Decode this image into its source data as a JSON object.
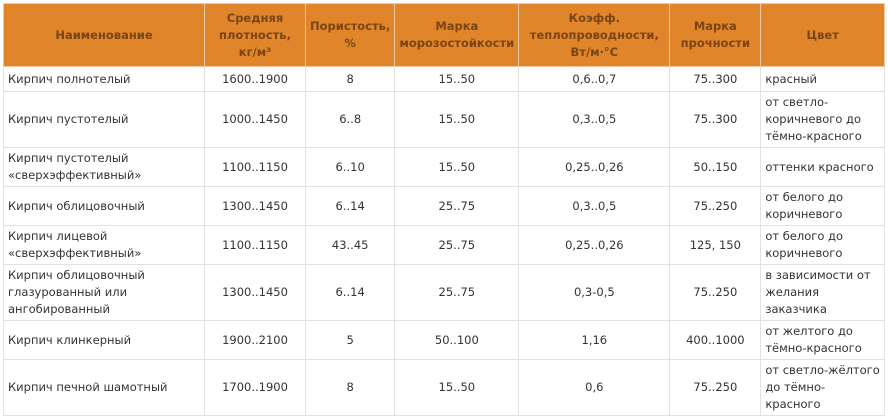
{
  "headers": [
    "Наименование",
    "Средняя плотность, кг/м³",
    "Пористость, %",
    "Марка морозостойкости",
    "Коэфф. теплопроводности, Вт/м·°С",
    "Марка прочности",
    "Цвет"
  ],
  "header_color": "#e0852a",
  "rows": [
    [
      "Кирпич полнотелый",
      "1600..1900",
      "8",
      "15..50",
      "0,6..0,7",
      "75..300",
      "красный"
    ],
    [
      "Кирпич пустотелый",
      "1000..1450",
      "6..8",
      "15..50",
      "0,3..0,5",
      "75..300",
      "от светло-коричневого до тёмно-красного"
    ],
    [
      "Кирпич пустотелый «сверхэффективный»",
      "1100..1150",
      "6..10",
      "15..50",
      "0,25..0,26",
      "50..150",
      "оттенки красного"
    ],
    [
      "Кирпич облицовочный",
      "1300..1450",
      "6..14",
      "25..75",
      "0,3..0,5",
      "75..250",
      "от белого до коричневого"
    ],
    [
      "Кирпич лицевой «сверхэффективный»",
      "1100..1150",
      "43..45",
      "25..75",
      "0,25..0,26",
      "125, 150",
      "от белого до коричневого"
    ],
    [
      "Кирпич облицовочный глазурованный или ангобированный",
      "1300..1450",
      "6..14",
      "25..75",
      "0,3-0,5",
      "75..250",
      "в зависимости от желания заказчика"
    ],
    [
      "Кирпич клинкерный",
      "1900..2100",
      "5",
      "50..100",
      "1,16",
      "400..1000",
      "от желтого до тёмно-красного"
    ],
    [
      "Кирпич печной шамотный",
      "1700..1900",
      "8",
      "15..50",
      "0,6",
      "75..250",
      "от светло-жёлтого до тёмно-красного"
    ]
  ]
}
